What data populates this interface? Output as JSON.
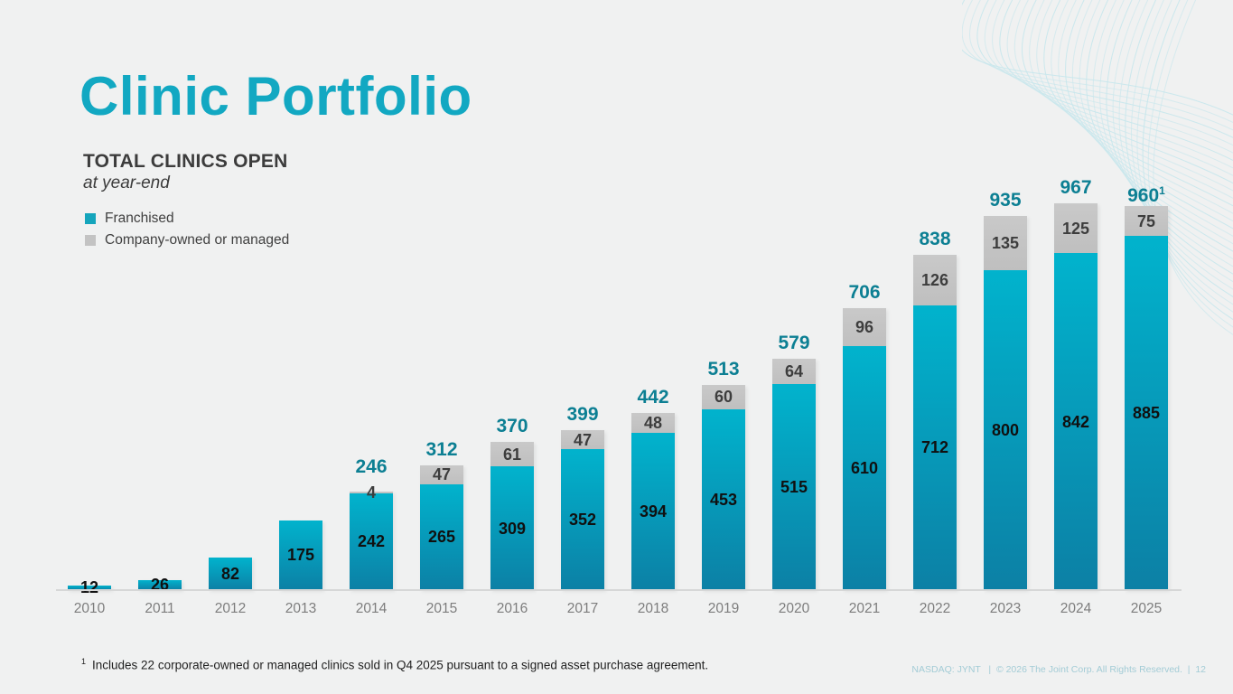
{
  "slide": {
    "title": "Clinic Portfolio",
    "subtitle": "TOTAL CLINICS OPEN",
    "subtitle2": "at year-end",
    "footnote_marker": "1",
    "footnote_text": "Includes 22 corporate-owned or managed clinics sold in Q4 2025 pursuant to a signed asset purchase agreement.",
    "footer": "NASDAQ: JYNT   |  © 2026 The Joint Corp. All Rights Reserved.  |  12"
  },
  "legend": {
    "items": [
      {
        "label": "Franchised",
        "color": "#15a5bc"
      },
      {
        "label": "Company-owned or managed",
        "color": "#c3c3c3"
      }
    ]
  },
  "colors": {
    "title_teal": "#12a8c2",
    "total_label_teal": "#0c7f93",
    "bar_teal_top": "#01b3cd",
    "bar_teal_bottom": "#0c80a5",
    "bar_gray": "#c4c4c4",
    "background": "#f0f1f1",
    "axis_text": "#7d7d7d",
    "footer_text": "#a3ccd6",
    "wave_decoration": "#c8e7ec"
  },
  "chart_data": {
    "type": "bar",
    "stacked": true,
    "title": "TOTAL CLINICS OPEN at year-end",
    "xlabel": "",
    "ylabel": "",
    "grid": false,
    "legend_position": "top-left",
    "ylim": [
      0,
      1050
    ],
    "categories": [
      "2010",
      "2011",
      "2012",
      "2013",
      "2014",
      "2015",
      "2016",
      "2017",
      "2018",
      "2019",
      "2020",
      "2021",
      "2022",
      "2023",
      "2024",
      "2025"
    ],
    "series": [
      {
        "name": "Franchised",
        "values": [
          12,
          26,
          82,
          175,
          242,
          265,
          309,
          352,
          394,
          453,
          515,
          610,
          712,
          800,
          842,
          885
        ]
      },
      {
        "name": "Company-owned or managed",
        "values": [
          0,
          0,
          0,
          0,
          4,
          47,
          61,
          47,
          48,
          60,
          64,
          96,
          126,
          135,
          125,
          75
        ]
      }
    ],
    "totals": [
      12,
      26,
      82,
      175,
      246,
      312,
      370,
      399,
      442,
      513,
      579,
      706,
      838,
      935,
      967,
      960
    ],
    "total_labels_shown_from_index": 4,
    "total_superscript": {
      "index": 15,
      "text": "1"
    }
  }
}
